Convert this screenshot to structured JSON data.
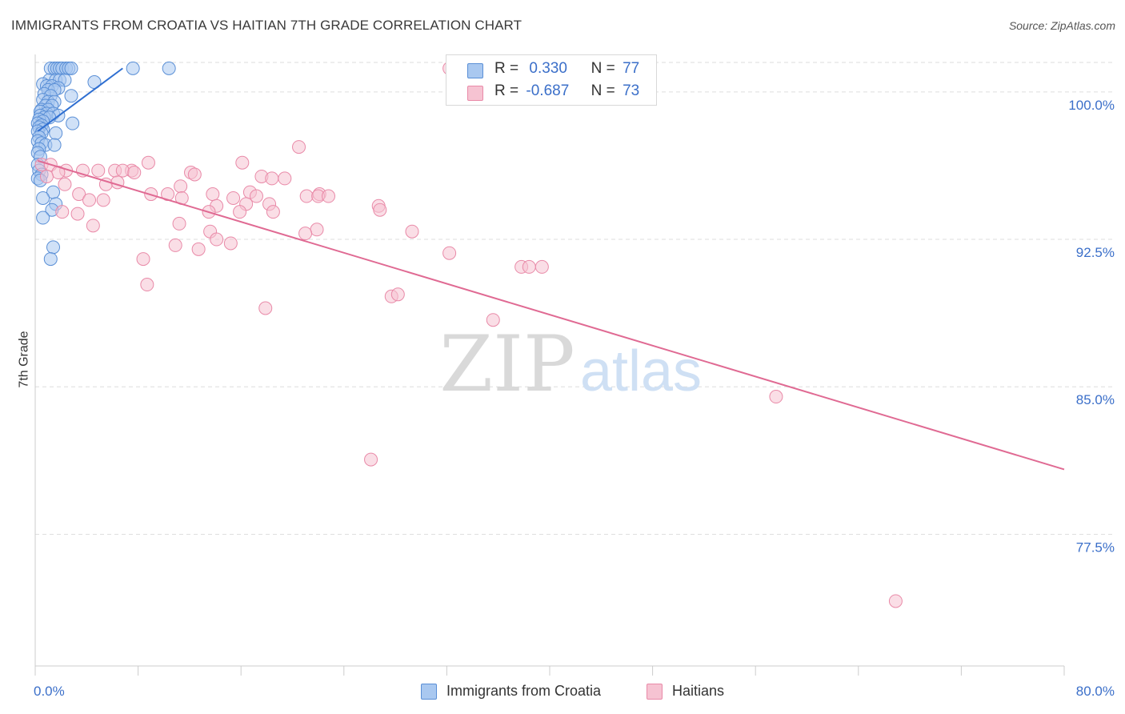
{
  "header": {
    "title": "IMMIGRANTS FROM CROATIA VS HAITIAN 7TH GRADE CORRELATION CHART",
    "source": "Source: ZipAtlas.com"
  },
  "watermark": {
    "part1": "ZIP",
    "part2": "atlas"
  },
  "legend": {
    "rows": [
      {
        "r_label": "R =",
        "r_value": "0.330",
        "n_label": "N =",
        "n_value": "77"
      },
      {
        "r_label": "R =",
        "r_value": "-0.687",
        "n_label": "N =",
        "n_value": "73"
      }
    ]
  },
  "bottom_legend": {
    "items": [
      {
        "label": "Immigrants from Croatia"
      },
      {
        "label": "Haitians"
      }
    ]
  },
  "colors": {
    "blue_fill": "#a9c8f0",
    "blue_stroke": "#5a8fd6",
    "blue_line": "#2f6fd1",
    "pink_fill": "#f6c3d2",
    "pink_stroke": "#e98aa8",
    "pink_line": "#e06a93",
    "tick_label": "#3b6fc9",
    "grid": "#dedede"
  },
  "chart_data": {
    "type": "scatter",
    "title": "IMMIGRANTS FROM CROATIA VS HAITIAN 7TH GRADE CORRELATION CHART",
    "xlabel": "",
    "ylabel": "7th Grade",
    "xlim": [
      0,
      80
    ],
    "ylim": [
      70.8,
      101.5
    ],
    "x_tick_labels": [
      "0.0%",
      "80.0%"
    ],
    "y_ticks": [
      77.5,
      85.0,
      92.5,
      100.0
    ],
    "y_tick_labels": [
      "77.5%",
      "85.0%",
      "92.5%",
      "100.0%"
    ],
    "grid": true,
    "legend_position": "top-center",
    "series": [
      {
        "name": "Immigrants from Croatia",
        "r": 0.33,
        "n": 77,
        "trend": {
          "x": [
            0.2,
            6.8
          ],
          "y": [
            98.0,
            101.2
          ]
        },
        "points": [
          [
            1.2,
            101.2
          ],
          [
            1.5,
            101.2
          ],
          [
            1.7,
            101.2
          ],
          [
            1.9,
            101.2
          ],
          [
            2.1,
            101.2
          ],
          [
            2.4,
            101.2
          ],
          [
            2.6,
            101.2
          ],
          [
            2.8,
            101.2
          ],
          [
            7.6,
            101.2
          ],
          [
            10.4,
            101.2
          ],
          [
            1.1,
            100.6
          ],
          [
            1.6,
            100.6
          ],
          [
            1.9,
            100.6
          ],
          [
            2.3,
            100.6
          ],
          [
            4.6,
            100.5
          ],
          [
            0.6,
            100.4
          ],
          [
            0.9,
            100.3
          ],
          [
            1.3,
            100.3
          ],
          [
            1.8,
            100.2
          ],
          [
            1.0,
            100.1
          ],
          [
            1.5,
            100.1
          ],
          [
            0.7,
            99.9
          ],
          [
            1.2,
            99.8
          ],
          [
            2.8,
            99.8
          ],
          [
            0.6,
            99.6
          ],
          [
            1.0,
            99.5
          ],
          [
            1.5,
            99.5
          ],
          [
            0.8,
            99.3
          ],
          [
            1.3,
            99.3
          ],
          [
            0.5,
            99.1
          ],
          [
            1.0,
            99.1
          ],
          [
            0.4,
            99.0
          ],
          [
            0.9,
            98.9
          ],
          [
            1.4,
            98.9
          ],
          [
            1.8,
            98.8
          ],
          [
            0.4,
            98.8
          ],
          [
            0.7,
            98.7
          ],
          [
            1.1,
            98.7
          ],
          [
            0.3,
            98.6
          ],
          [
            0.6,
            98.5
          ],
          [
            0.2,
            98.4
          ],
          [
            0.5,
            98.3
          ],
          [
            2.9,
            98.4
          ],
          [
            0.3,
            98.2
          ],
          [
            0.6,
            98.1
          ],
          [
            0.2,
            98.0
          ],
          [
            0.5,
            97.9
          ],
          [
            1.6,
            97.9
          ],
          [
            0.3,
            97.7
          ],
          [
            0.2,
            97.5
          ],
          [
            0.5,
            97.4
          ],
          [
            0.8,
            97.3
          ],
          [
            1.5,
            97.3
          ],
          [
            0.3,
            97.1
          ],
          [
            0.2,
            96.9
          ],
          [
            0.4,
            96.7
          ],
          [
            0.2,
            96.3
          ],
          [
            0.3,
            96.0
          ],
          [
            0.5,
            95.8
          ],
          [
            0.2,
            95.6
          ],
          [
            0.4,
            95.5
          ],
          [
            1.4,
            94.9
          ],
          [
            0.6,
            94.6
          ],
          [
            1.6,
            94.3
          ],
          [
            1.3,
            94.0
          ],
          [
            0.6,
            93.6
          ],
          [
            1.4,
            92.1
          ],
          [
            1.2,
            91.5
          ]
        ]
      },
      {
        "name": "Haitians",
        "r": -0.687,
        "n": 73,
        "trend": {
          "x": [
            0.2,
            80.0
          ],
          "y": [
            96.5,
            80.8
          ]
        },
        "points": [
          [
            32.2,
            101.2
          ],
          [
            20.5,
            97.2
          ],
          [
            8.8,
            96.4
          ],
          [
            16.1,
            96.4
          ],
          [
            0.5,
            96.3
          ],
          [
            1.2,
            96.3
          ],
          [
            2.4,
            96.0
          ],
          [
            3.7,
            96.0
          ],
          [
            4.9,
            96.0
          ],
          [
            6.2,
            96.0
          ],
          [
            7.5,
            96.0
          ],
          [
            6.8,
            96.0
          ],
          [
            1.8,
            95.9
          ],
          [
            7.7,
            95.9
          ],
          [
            12.1,
            95.9
          ],
          [
            12.4,
            95.8
          ],
          [
            17.6,
            95.7
          ],
          [
            19.4,
            95.6
          ],
          [
            18.4,
            95.6
          ],
          [
            0.9,
            95.7
          ],
          [
            5.5,
            95.3
          ],
          [
            6.4,
            95.4
          ],
          [
            2.3,
            95.3
          ],
          [
            11.3,
            95.2
          ],
          [
            3.4,
            94.8
          ],
          [
            4.2,
            94.5
          ],
          [
            5.3,
            94.5
          ],
          [
            9.0,
            94.8
          ],
          [
            10.3,
            94.8
          ],
          [
            11.4,
            94.6
          ],
          [
            13.8,
            94.8
          ],
          [
            15.4,
            94.6
          ],
          [
            16.7,
            94.9
          ],
          [
            17.2,
            94.7
          ],
          [
            21.1,
            94.7
          ],
          [
            22.1,
            94.8
          ],
          [
            14.1,
            94.2
          ],
          [
            16.4,
            94.3
          ],
          [
            18.2,
            94.3
          ],
          [
            15.9,
            93.9
          ],
          [
            22.0,
            94.7
          ],
          [
            22.8,
            94.7
          ],
          [
            26.7,
            94.2
          ],
          [
            18.5,
            93.9
          ],
          [
            11.2,
            93.3
          ],
          [
            13.6,
            92.9
          ],
          [
            13.5,
            93.9
          ],
          [
            4.5,
            93.2
          ],
          [
            2.1,
            93.9
          ],
          [
            3.3,
            93.8
          ],
          [
            26.8,
            94.0
          ],
          [
            21.9,
            93.0
          ],
          [
            21.0,
            92.8
          ],
          [
            14.1,
            92.5
          ],
          [
            15.2,
            92.3
          ],
          [
            10.9,
            92.2
          ],
          [
            12.7,
            92.0
          ],
          [
            29.3,
            92.9
          ],
          [
            32.2,
            91.8
          ],
          [
            8.4,
            91.5
          ],
          [
            37.8,
            91.1
          ],
          [
            38.4,
            91.1
          ],
          [
            39.4,
            91.1
          ],
          [
            8.7,
            90.2
          ],
          [
            27.7,
            89.6
          ],
          [
            28.2,
            89.7
          ],
          [
            17.9,
            89.0
          ],
          [
            35.6,
            88.4
          ],
          [
            57.6,
            84.5
          ],
          [
            26.1,
            81.3
          ],
          [
            66.9,
            74.1
          ]
        ]
      }
    ]
  }
}
